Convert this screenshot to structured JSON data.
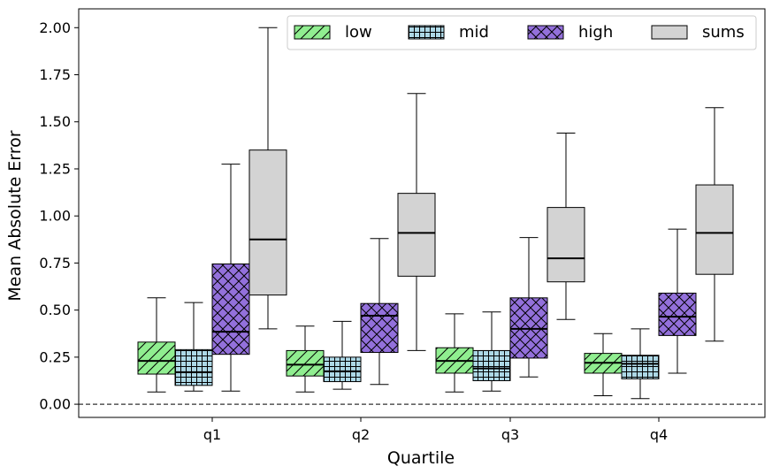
{
  "chart_data": {
    "type": "box",
    "title": "",
    "xlabel": "Quartile",
    "ylabel": "Mean Absolute Error",
    "ylim": [
      -0.07,
      2.1
    ],
    "yticks": [
      "0.00",
      "0.25",
      "0.50",
      "0.75",
      "1.00",
      "1.25",
      "1.50",
      "1.75",
      "2.00"
    ],
    "categories": [
      "q1",
      "q2",
      "q3",
      "q4"
    ],
    "reference_line": {
      "y": 0.0,
      "style": "dashed"
    },
    "legend": {
      "placement": "top-right",
      "columns": 4
    },
    "series": [
      {
        "name": "low",
        "color": "#90ee90",
        "hatch": "diagonal",
        "boxes": [
          {
            "whislo": 0.065,
            "q1": 0.16,
            "med": 0.23,
            "q3": 0.33,
            "whishi": 0.565
          },
          {
            "whislo": 0.065,
            "q1": 0.15,
            "med": 0.21,
            "q3": 0.285,
            "whishi": 0.415
          },
          {
            "whislo": 0.065,
            "q1": 0.165,
            "med": 0.23,
            "q3": 0.3,
            "whishi": 0.48
          },
          {
            "whislo": 0.045,
            "q1": 0.165,
            "med": 0.22,
            "q3": 0.27,
            "whishi": 0.375
          }
        ]
      },
      {
        "name": "mid",
        "color": "#add8e6",
        "hatch": "grid",
        "boxes": [
          {
            "whislo": 0.07,
            "q1": 0.1,
            "med": 0.17,
            "q3": 0.29,
            "whishi": 0.54
          },
          {
            "whislo": 0.08,
            "q1": 0.12,
            "med": 0.175,
            "q3": 0.25,
            "whishi": 0.44
          },
          {
            "whislo": 0.07,
            "q1": 0.125,
            "med": 0.19,
            "q3": 0.285,
            "whishi": 0.49
          },
          {
            "whislo": 0.03,
            "q1": 0.135,
            "med": 0.215,
            "q3": 0.26,
            "whishi": 0.4
          }
        ]
      },
      {
        "name": "high",
        "color": "#9370db",
        "hatch": "crosshatch",
        "boxes": [
          {
            "whislo": 0.07,
            "q1": 0.265,
            "med": 0.385,
            "q3": 0.745,
            "whishi": 1.275
          },
          {
            "whislo": 0.105,
            "q1": 0.275,
            "med": 0.47,
            "q3": 0.535,
            "whishi": 0.88
          },
          {
            "whislo": 0.145,
            "q1": 0.245,
            "med": 0.4,
            "q3": 0.565,
            "whishi": 0.885
          },
          {
            "whislo": 0.165,
            "q1": 0.365,
            "med": 0.465,
            "q3": 0.59,
            "whishi": 0.93
          }
        ]
      },
      {
        "name": "sums",
        "color": "#d3d3d3",
        "hatch": "none",
        "boxes": [
          {
            "whislo": 0.4,
            "q1": 0.58,
            "med": 0.875,
            "q3": 1.35,
            "whishi": 2.0
          },
          {
            "whislo": 0.285,
            "q1": 0.68,
            "med": 0.91,
            "q3": 1.12,
            "whishi": 1.65
          },
          {
            "whislo": 0.45,
            "q1": 0.65,
            "med": 0.775,
            "q3": 1.045,
            "whishi": 1.44
          },
          {
            "whislo": 0.335,
            "q1": 0.69,
            "med": 0.91,
            "q3": 1.165,
            "whishi": 1.575
          }
        ]
      }
    ]
  }
}
